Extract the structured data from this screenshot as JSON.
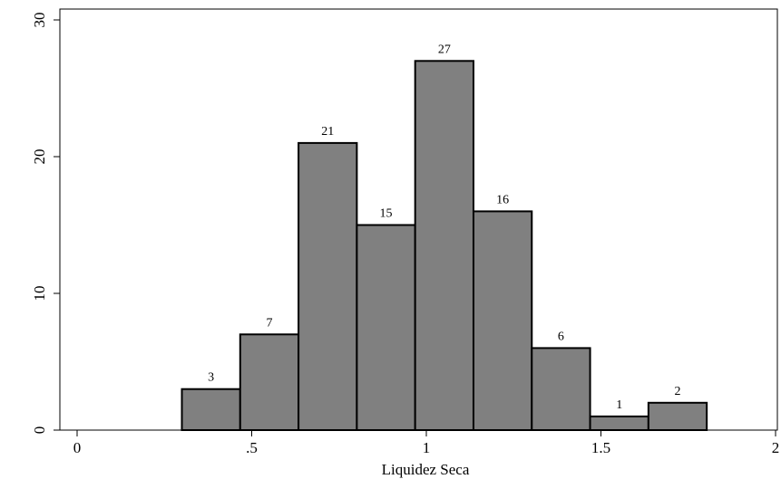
{
  "chart_data": {
    "type": "bar",
    "subtype": "histogram",
    "xlabel": "Liquidez Seca",
    "ylabel": "",
    "xlim": [
      0,
      2
    ],
    "ylim": [
      0,
      30
    ],
    "x_ticks": [
      {
        "value": 0,
        "label": "0"
      },
      {
        "value": 0.5,
        "label": ".5"
      },
      {
        "value": 1,
        "label": "1"
      },
      {
        "value": 1.5,
        "label": "1.5"
      },
      {
        "value": 2,
        "label": "2"
      }
    ],
    "y_ticks": [
      {
        "value": 0,
        "label": "0"
      },
      {
        "value": 10,
        "label": "10"
      },
      {
        "value": 20,
        "label": "20"
      },
      {
        "value": 30,
        "label": "30"
      }
    ],
    "bins": [
      {
        "start": 0.3,
        "end": 0.467,
        "value": 3
      },
      {
        "start": 0.467,
        "end": 0.634,
        "value": 7
      },
      {
        "start": 0.634,
        "end": 0.801,
        "value": 21
      },
      {
        "start": 0.801,
        "end": 0.968,
        "value": 15
      },
      {
        "start": 0.968,
        "end": 1.135,
        "value": 27
      },
      {
        "start": 1.135,
        "end": 1.302,
        "value": 16
      },
      {
        "start": 1.302,
        "end": 1.469,
        "value": 6
      },
      {
        "start": 1.469,
        "end": 1.636,
        "value": 1
      },
      {
        "start": 1.636,
        "end": 1.803,
        "value": 2
      }
    ],
    "bar_color": "#808080",
    "bar_edge_color": "#000000",
    "grid": false
  }
}
